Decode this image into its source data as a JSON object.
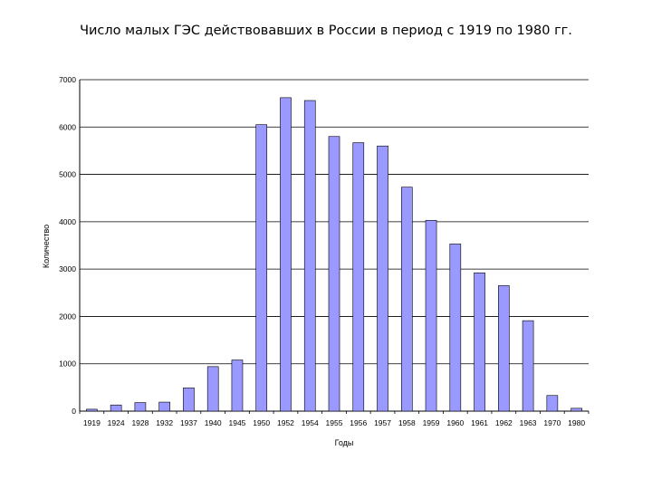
{
  "title": "Число малых ГЭС действовавших в России в период с 1919 по 1980 гг.",
  "chart_data": {
    "type": "bar",
    "title": "Число малых ГЭС действовавших в России в период с 1919 по 1980 гг.",
    "xlabel": "Годы",
    "ylabel": "Количество",
    "categories": [
      "1919",
      "1924",
      "1928",
      "1932",
      "1937",
      "1940",
      "1945",
      "1950",
      "1952",
      "1954",
      "1955",
      "1956",
      "1957",
      "1958",
      "1959",
      "1960",
      "1961",
      "1962",
      "1963",
      "1970",
      "1980"
    ],
    "values": [
      40,
      130,
      180,
      190,
      490,
      940,
      1080,
      6050,
      6620,
      6560,
      5800,
      5670,
      5600,
      4730,
      4030,
      3530,
      2920,
      2650,
      1910,
      330,
      60
    ],
    "ylim": [
      0,
      7000
    ],
    "yticks": [
      "0",
      "1000",
      "2000",
      "3000",
      "4000",
      "5000",
      "6000",
      "7000"
    ],
    "grid": true,
    "bar_color": "#9999ff",
    "bar_edge_color": "#000000"
  }
}
